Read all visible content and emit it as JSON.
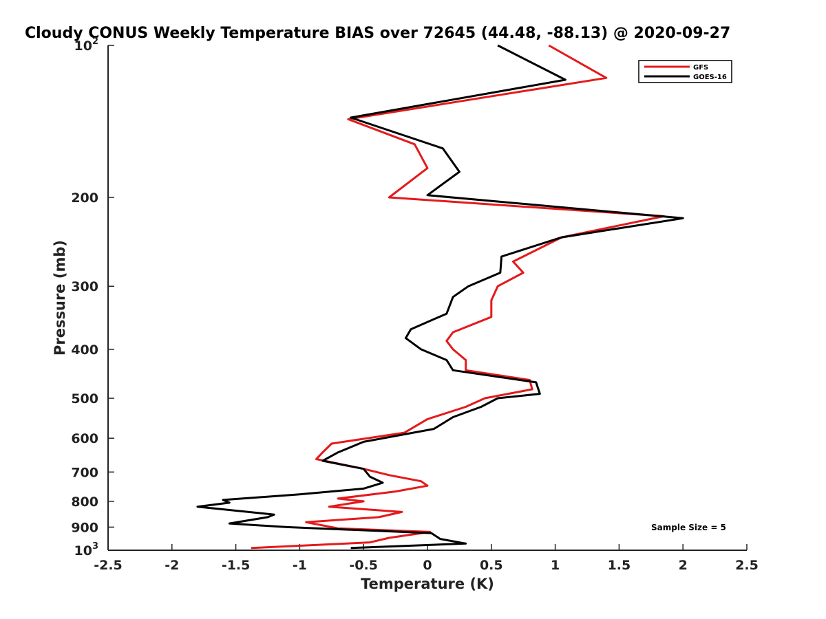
{
  "chart_data": {
    "type": "line",
    "title": "Cloudy CONUS Weekly Temperature BIAS over 72645 (44.48, -88.13) @ 2020-09-27",
    "xlabel": "Temperature (K)",
    "ylabel": "Pressure (mb)",
    "xlim": [
      -2.5,
      2.5
    ],
    "ylim": [
      100,
      1000
    ],
    "y_scale": "log",
    "y_reversed": true,
    "grid": false,
    "legend_position": "top-right",
    "x_ticks": [
      "-2.5",
      "-2",
      "-1.5",
      "-1",
      "-0.5",
      "0",
      "0.5",
      "1",
      "1.5",
      "2",
      "2.5"
    ],
    "y_ticks": [
      {
        "value": 100,
        "base": "10",
        "exp": "2"
      },
      {
        "value": 200,
        "label": "200"
      },
      {
        "value": 300,
        "label": "300"
      },
      {
        "value": 400,
        "label": "400"
      },
      {
        "value": 500,
        "label": "500"
      },
      {
        "value": 600,
        "label": "600"
      },
      {
        "value": 700,
        "label": "700"
      },
      {
        "value": 800,
        "label": "800"
      },
      {
        "value": 900,
        "label": "900"
      },
      {
        "value": 1000,
        "base": "10",
        "exp": "3"
      }
    ],
    "annotation": "Sample Size = 5",
    "series": [
      {
        "name": "GFS",
        "color": "#e41a1c",
        "points": [
          [
            0.95,
            100
          ],
          [
            1.4,
            116
          ],
          [
            -0.62,
            140
          ],
          [
            -0.1,
            157
          ],
          [
            0.0,
            175
          ],
          [
            -0.3,
            200
          ],
          [
            1.85,
            218
          ],
          [
            1.05,
            240
          ],
          [
            0.67,
            268
          ],
          [
            0.75,
            282
          ],
          [
            0.55,
            300
          ],
          [
            0.5,
            320
          ],
          [
            0.5,
            345
          ],
          [
            0.2,
            370
          ],
          [
            0.15,
            385
          ],
          [
            0.2,
            400
          ],
          [
            0.3,
            420
          ],
          [
            0.3,
            440
          ],
          [
            0.8,
            460
          ],
          [
            0.82,
            480
          ],
          [
            0.45,
            500
          ],
          [
            0.3,
            520
          ],
          [
            0.0,
            550
          ],
          [
            -0.18,
            585
          ],
          [
            -0.75,
            615
          ],
          [
            -0.82,
            640
          ],
          [
            -0.87,
            660
          ],
          [
            -0.5,
            690
          ],
          [
            -0.3,
            710
          ],
          [
            -0.05,
            730
          ],
          [
            0.0,
            745
          ],
          [
            -0.25,
            765
          ],
          [
            -0.7,
            790
          ],
          [
            -0.5,
            800
          ],
          [
            -0.77,
            820
          ],
          [
            -0.2,
            840
          ],
          [
            -0.38,
            860
          ],
          [
            -0.95,
            880
          ],
          [
            -0.7,
            905
          ],
          [
            0.02,
            920
          ],
          [
            -0.3,
            945
          ],
          [
            -0.45,
            965
          ],
          [
            -1.38,
            990
          ]
        ]
      },
      {
        "name": "GOES-16",
        "color": "#000000",
        "points": [
          [
            0.55,
            100
          ],
          [
            1.08,
            117
          ],
          [
            -0.6,
            139
          ],
          [
            0.12,
            160
          ],
          [
            0.25,
            178
          ],
          [
            0.0,
            198
          ],
          [
            2.0,
            220
          ],
          [
            1.05,
            240
          ],
          [
            0.58,
            262
          ],
          [
            0.57,
            282
          ],
          [
            0.32,
            300
          ],
          [
            0.2,
            315
          ],
          [
            0.15,
            340
          ],
          [
            -0.13,
            365
          ],
          [
            -0.17,
            380
          ],
          [
            -0.05,
            400
          ],
          [
            0.15,
            420
          ],
          [
            0.2,
            440
          ],
          [
            0.85,
            465
          ],
          [
            0.88,
            490
          ],
          [
            0.55,
            500
          ],
          [
            0.42,
            520
          ],
          [
            0.2,
            545
          ],
          [
            0.05,
            575
          ],
          [
            -0.5,
            610
          ],
          [
            -0.7,
            640
          ],
          [
            -0.82,
            665
          ],
          [
            -0.5,
            690
          ],
          [
            -0.45,
            715
          ],
          [
            -0.35,
            735
          ],
          [
            -0.5,
            755
          ],
          [
            -1.0,
            775
          ],
          [
            -1.6,
            795
          ],
          [
            -1.55,
            805
          ],
          [
            -1.8,
            820
          ],
          [
            -1.2,
            850
          ],
          [
            -1.25,
            860
          ],
          [
            -1.55,
            885
          ],
          [
            -1.1,
            900
          ],
          [
            0.03,
            925
          ],
          [
            0.1,
            950
          ],
          [
            0.3,
            970
          ],
          [
            -0.6,
            990
          ]
        ]
      }
    ]
  }
}
